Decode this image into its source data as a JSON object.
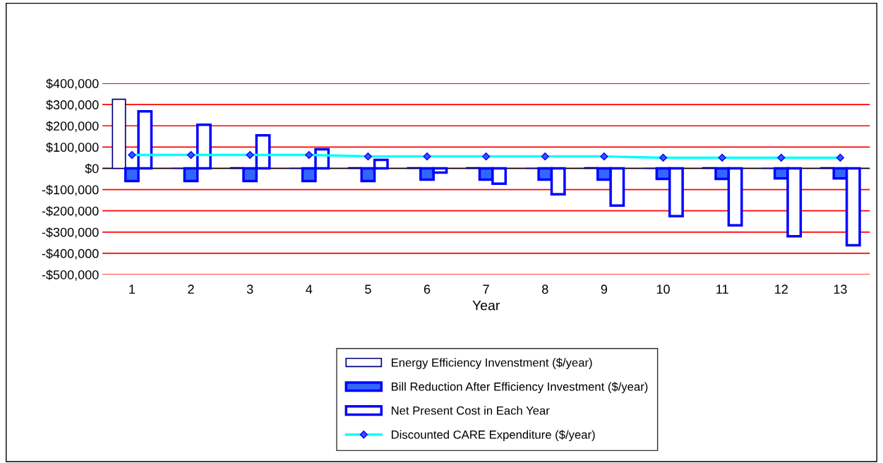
{
  "chart_data": {
    "type": "bar",
    "xlabel": "Year",
    "categories": [
      "1",
      "2",
      "3",
      "4",
      "5",
      "6",
      "7",
      "8",
      "9",
      "10",
      "11",
      "12",
      "13"
    ],
    "series": [
      {
        "name": "Energy Efficiency Invenstment ($/year)",
        "color": "#000080",
        "values": [
          325000,
          0,
          3000,
          0,
          3000,
          3000,
          3000,
          0,
          3000,
          0,
          3000,
          0,
          3000
        ]
      },
      {
        "name": "Bill Reduction After Efficiency Investment ($/year)",
        "color": "#3366ff",
        "values": [
          -60000,
          -60000,
          -60000,
          -60000,
          -60000,
          -53000,
          -53000,
          -53000,
          -53000,
          -50000,
          -50000,
          -47000,
          -47000
        ]
      },
      {
        "name": "Net Present Cost in Each Year",
        "color": "#0000ff",
        "values": [
          268000,
          205000,
          155000,
          90000,
          40000,
          -20000,
          -72000,
          -122000,
          -175000,
          -225000,
          -268000,
          -320000,
          -362000
        ]
      },
      {
        "name": "Discounted CARE Expenditure ($/year)",
        "type": "line",
        "color": "#00ffff",
        "marker": "diamond",
        "values": [
          63000,
          63000,
          63000,
          63000,
          56000,
          56000,
          56000,
          56000,
          56000,
          50000,
          50000,
          50000,
          50000
        ]
      }
    ],
    "ylim": [
      -500000,
      400000
    ],
    "yticks": [
      {
        "value": -500000,
        "label": "-$500,000"
      },
      {
        "value": -400000,
        "label": "-$400,000"
      },
      {
        "value": -300000,
        "label": "-$300,000"
      },
      {
        "value": -200000,
        "label": "-$200,000"
      },
      {
        "value": -100000,
        "label": "-$100,000"
      },
      {
        "value": 0,
        "label": "$0"
      },
      {
        "value": 100000,
        "label": "$100,000"
      },
      {
        "value": 200000,
        "label": "$200,000"
      },
      {
        "value": 300000,
        "label": "$300,000"
      },
      {
        "value": 400000,
        "label": "$400,000"
      }
    ],
    "grid": "y",
    "legend": "bottom"
  }
}
